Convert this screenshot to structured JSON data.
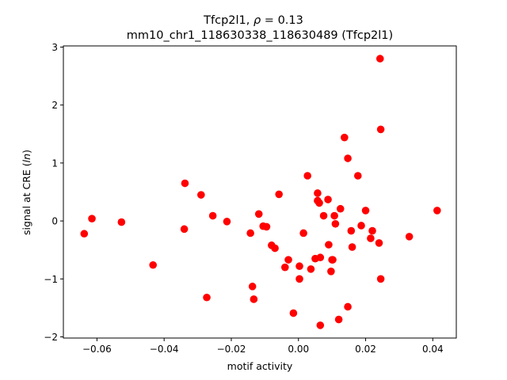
{
  "chart_data": {
    "type": "scatter",
    "title_line1_prefix": "Tfcp2l1, ",
    "title_line1_rho": "ρ",
    "title_line1_suffix": " = 0.13",
    "title_line2": "mm10_chr1_118630338_118630489 (Tfcp2l1)",
    "xlabel": "motif activity",
    "ylabel_prefix": "signal at CRE (",
    "ylabel_italic": "ln",
    "ylabel_suffix": ")",
    "xlim": [
      -0.07,
      0.047
    ],
    "ylim": [
      -2.02,
      3.02
    ],
    "xticks": [
      -0.06,
      -0.04,
      -0.02,
      0.0,
      0.02,
      0.04
    ],
    "xtick_labels": [
      "−0.06",
      "−0.04",
      "−0.02",
      "0.00",
      "0.02",
      "0.04"
    ],
    "yticks": [
      -2,
      -1,
      0,
      1,
      2,
      3
    ],
    "ytick_labels": [
      "−2",
      "−1",
      "0",
      "1",
      "2",
      "3"
    ],
    "grid": false,
    "marker_color": "#ff0000",
    "points": [
      {
        "x": -0.0638,
        "y": -0.22
      },
      {
        "x": -0.0615,
        "y": 0.04
      },
      {
        "x": -0.0527,
        "y": -0.02
      },
      {
        "x": -0.0433,
        "y": -0.76
      },
      {
        "x": -0.0338,
        "y": 0.65
      },
      {
        "x": -0.034,
        "y": -0.14
      },
      {
        "x": -0.029,
        "y": 0.45
      },
      {
        "x": -0.0273,
        "y": -1.32
      },
      {
        "x": -0.0255,
        "y": 0.09
      },
      {
        "x": -0.0213,
        "y": -0.01
      },
      {
        "x": -0.0143,
        "y": -0.21
      },
      {
        "x": -0.0137,
        "y": -1.13
      },
      {
        "x": -0.0133,
        "y": -1.35
      },
      {
        "x": -0.0118,
        "y": 0.12
      },
      {
        "x": -0.0105,
        "y": -0.09
      },
      {
        "x": -0.0095,
        "y": -0.1
      },
      {
        "x": -0.008,
        "y": -0.42
      },
      {
        "x": -0.007,
        "y": -0.47
      },
      {
        "x": -0.0058,
        "y": 0.46
      },
      {
        "x": -0.004,
        "y": -0.8
      },
      {
        "x": -0.003,
        "y": -0.67
      },
      {
        "x": -0.0015,
        "y": -1.59
      },
      {
        "x": 0.0003,
        "y": -0.78
      },
      {
        "x": 0.0003,
        "y": -1.0
      },
      {
        "x": 0.0015,
        "y": -0.21
      },
      {
        "x": 0.0027,
        "y": 0.78
      },
      {
        "x": 0.0037,
        "y": -0.83
      },
      {
        "x": 0.005,
        "y": -0.65
      },
      {
        "x": 0.0057,
        "y": 0.48
      },
      {
        "x": 0.0057,
        "y": 0.35
      },
      {
        "x": 0.0062,
        "y": 0.31
      },
      {
        "x": 0.0065,
        "y": -0.63
      },
      {
        "x": 0.0065,
        "y": -1.8
      },
      {
        "x": 0.0075,
        "y": 0.09
      },
      {
        "x": 0.0088,
        "y": 0.37
      },
      {
        "x": 0.009,
        "y": -0.41
      },
      {
        "x": 0.0097,
        "y": -0.87
      },
      {
        "x": 0.01,
        "y": -0.67
      },
      {
        "x": 0.0102,
        "y": -0.67
      },
      {
        "x": 0.0107,
        "y": 0.09
      },
      {
        "x": 0.011,
        "y": -0.05
      },
      {
        "x": 0.012,
        "y": -1.7
      },
      {
        "x": 0.0125,
        "y": 0.21
      },
      {
        "x": 0.0137,
        "y": 1.44
      },
      {
        "x": 0.0147,
        "y": 1.08
      },
      {
        "x": 0.0147,
        "y": -1.48
      },
      {
        "x": 0.0157,
        "y": -0.17
      },
      {
        "x": 0.016,
        "y": -0.45
      },
      {
        "x": 0.0177,
        "y": 0.78
      },
      {
        "x": 0.0187,
        "y": -0.08
      },
      {
        "x": 0.02,
        "y": 0.18
      },
      {
        "x": 0.0215,
        "y": -0.3
      },
      {
        "x": 0.022,
        "y": -0.17
      },
      {
        "x": 0.024,
        "y": -0.38
      },
      {
        "x": 0.0243,
        "y": 2.8
      },
      {
        "x": 0.0245,
        "y": 1.58
      },
      {
        "x": 0.0245,
        "y": -1.0
      },
      {
        "x": 0.033,
        "y": -0.27
      },
      {
        "x": 0.0413,
        "y": 0.18
      }
    ]
  }
}
